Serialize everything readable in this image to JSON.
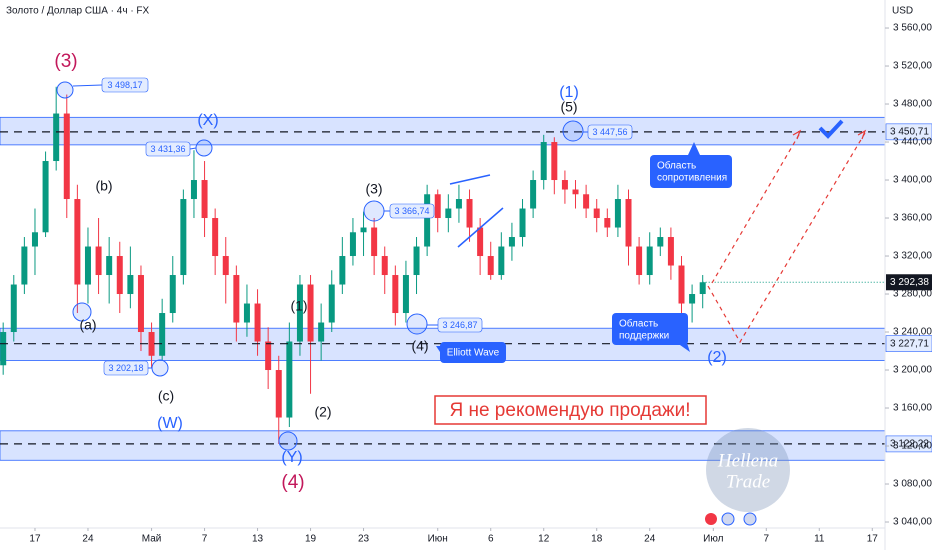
{
  "chart_data": {
    "type": "candlestick",
    "title": "Золото / Доллар США · 4ч · FX",
    "currency": "USD",
    "up_color": "#089981",
    "down_color": "#f23645",
    "x": [
      -3,
      -2,
      -1,
      0,
      1,
      2,
      3,
      4,
      5,
      6,
      7,
      8,
      9,
      10,
      11,
      12,
      13,
      14,
      15,
      16,
      17,
      18,
      19,
      20,
      21,
      22,
      23,
      24,
      25,
      26,
      27,
      28,
      29,
      30,
      31,
      32,
      33,
      34,
      35,
      36,
      37,
      38,
      39,
      40,
      41,
      42,
      43,
      44,
      45,
      46,
      47,
      48,
      49,
      50,
      51,
      52,
      53,
      54,
      55,
      56,
      57,
      58,
      59,
      60,
      61,
      62,
      63
    ],
    "open": [
      3205,
      3240,
      3290,
      3330,
      3345,
      3420,
      3470,
      3380,
      3290,
      3330,
      3300,
      3320,
      3280,
      3300,
      3240,
      3215,
      3260,
      3300,
      3380,
      3400,
      3360,
      3320,
      3300,
      3250,
      3270,
      3230,
      3200,
      3150,
      3230,
      3290,
      3230,
      3250,
      3290,
      3320,
      3345,
      3350,
      3320,
      3300,
      3260,
      3300,
      3330,
      3385,
      3360,
      3370,
      3380,
      3350,
      3320,
      3300,
      3330,
      3340,
      3370,
      3400,
      3440,
      3400,
      3390,
      3385,
      3370,
      3360,
      3350,
      3380,
      3330,
      3300,
      3330,
      3340,
      3310,
      3270,
      3280
    ],
    "high": [
      3250,
      3300,
      3340,
      3370,
      3430,
      3498.17,
      3490,
      3395,
      3350,
      3360,
      3340,
      3335,
      3330,
      3310,
      3250,
      3275,
      3320,
      3390,
      3431.36,
      3420,
      3370,
      3340,
      3310,
      3290,
      3285,
      3245,
      3215,
      3250,
      3300,
      3300,
      3270,
      3305,
      3340,
      3360,
      3366.74,
      3360,
      3330,
      3310,
      3315,
      3340,
      3395,
      3390,
      3385,
      3395,
      3390,
      3360,
      3335,
      3345,
      3355,
      3380,
      3410,
      3447.56,
      3445,
      3410,
      3400,
      3395,
      3380,
      3370,
      3395,
      3390,
      3340,
      3345,
      3350,
      3350,
      3320,
      3290,
      3300
    ],
    "low": [
      3195,
      3230,
      3280,
      3300,
      3340,
      3410,
      3360,
      3260,
      3270,
      3280,
      3270,
      3260,
      3265,
      3220,
      3202.18,
      3210,
      3250,
      3290,
      3360,
      3340,
      3300,
      3270,
      3230,
      3235,
      3215,
      3180,
      3122.22,
      3140,
      3215,
      3175,
      3210,
      3240,
      3280,
      3310,
      3320,
      3300,
      3280,
      3246.87,
      3250,
      3280,
      3320,
      3345,
      3345,
      3355,
      3335,
      3300,
      3295,
      3295,
      3315,
      3330,
      3360,
      3390,
      3385,
      3375,
      3370,
      3360,
      3345,
      3340,
      3340,
      3310,
      3290,
      3290,
      3320,
      3295,
      3255,
      3250,
      3265
    ],
    "close": [
      3240,
      3290,
      3330,
      3345,
      3420,
      3470,
      3380,
      3290,
      3330,
      3300,
      3320,
      3280,
      3300,
      3240,
      3215,
      3260,
      3300,
      3380,
      3400,
      3360,
      3320,
      3300,
      3250,
      3270,
      3230,
      3200,
      3150,
      3230,
      3290,
      3230,
      3250,
      3290,
      3320,
      3345,
      3350,
      3320,
      3300,
      3260,
      3300,
      3330,
      3385,
      3360,
      3370,
      3380,
      3350,
      3320,
      3300,
      3330,
      3340,
      3370,
      3400,
      3440,
      3400,
      3390,
      3385,
      3370,
      3360,
      3350,
      3380,
      3330,
      3300,
      3330,
      3340,
      3310,
      3270,
      3280,
      3292.38
    ],
    "xlim": [
      -3.3,
      80.2
    ],
    "xticks": [
      {
        "value": 0,
        "label": "17"
      },
      {
        "value": 5,
        "label": "24"
      },
      {
        "value": 11,
        "label": "Май"
      },
      {
        "value": 16,
        "label": "7"
      },
      {
        "value": 21,
        "label": "13"
      },
      {
        "value": 26,
        "label": "19"
      },
      {
        "value": 31,
        "label": "23"
      },
      {
        "value": 38,
        "label": "Июн"
      },
      {
        "value": 43,
        "label": "6"
      },
      {
        "value": 48,
        "label": "12"
      },
      {
        "value": 53,
        "label": "18"
      },
      {
        "value": 58,
        "label": "24"
      },
      {
        "value": 64,
        "label": "Июл"
      },
      {
        "value": 69,
        "label": "7"
      },
      {
        "value": 74,
        "label": "11"
      },
      {
        "value": 79,
        "label": "17"
      }
    ],
    "ylim": [
      3033.7,
      3589.5
    ],
    "yticks": [
      {
        "value": 3040,
        "label": "3 040,00"
      },
      {
        "value": 3080,
        "label": "3 080,00"
      },
      {
        "value": 3120,
        "label": "3 120,00"
      },
      {
        "value": 3160,
        "label": "3 160,00"
      },
      {
        "value": 3200,
        "label": "3 200,00"
      },
      {
        "value": 3240,
        "label": "3 240,00"
      },
      {
        "value": 3280,
        "label": "3 280,00"
      },
      {
        "value": 3320,
        "label": "3 320,00"
      },
      {
        "value": 3360,
        "label": "3 360,00"
      },
      {
        "value": 3400,
        "label": "3 400,00"
      },
      {
        "value": 3440,
        "label": "3 440,00"
      },
      {
        "value": 3480,
        "label": "3 480,00"
      },
      {
        "value": 3520,
        "label": "3 520,00"
      },
      {
        "value": 3560,
        "label": "3 560,00"
      }
    ],
    "levels": [
      {
        "value": 3450.71,
        "label": "3 450,71"
      },
      {
        "value": 3227.71,
        "label": "3 227,71"
      },
      {
        "value": 3122.22,
        "label": "3 122,22"
      }
    ],
    "last_price": {
      "value": 3292.38,
      "label": "3 292,38"
    },
    "zones": [
      [
        3437,
        3466
      ],
      [
        3210,
        3244
      ],
      [
        3105,
        3136
      ]
    ],
    "zone_color": "#2962ff"
  },
  "annotations": {
    "price_labels": [
      "3 498,17",
      "3 431,36",
      "3 202,18",
      "3 366,74",
      "3 246,87",
      "3 447,56"
    ],
    "waves": [
      "(3)",
      "(b)",
      "(a)",
      "(c)",
      "(W)",
      "(X)",
      "(Y)",
      "(4)",
      "(1)",
      "(2)",
      "(3)",
      "(4)",
      "(1)",
      "(5)",
      "(2)"
    ],
    "resistance": [
      "Область",
      "сопротивления"
    ],
    "support": [
      "Область",
      "поддержки"
    ],
    "elliott": "Elliott Wave",
    "warning": "Я не рекомендую продажи!"
  },
  "watermark": [
    "Hellena",
    "Trade"
  ]
}
